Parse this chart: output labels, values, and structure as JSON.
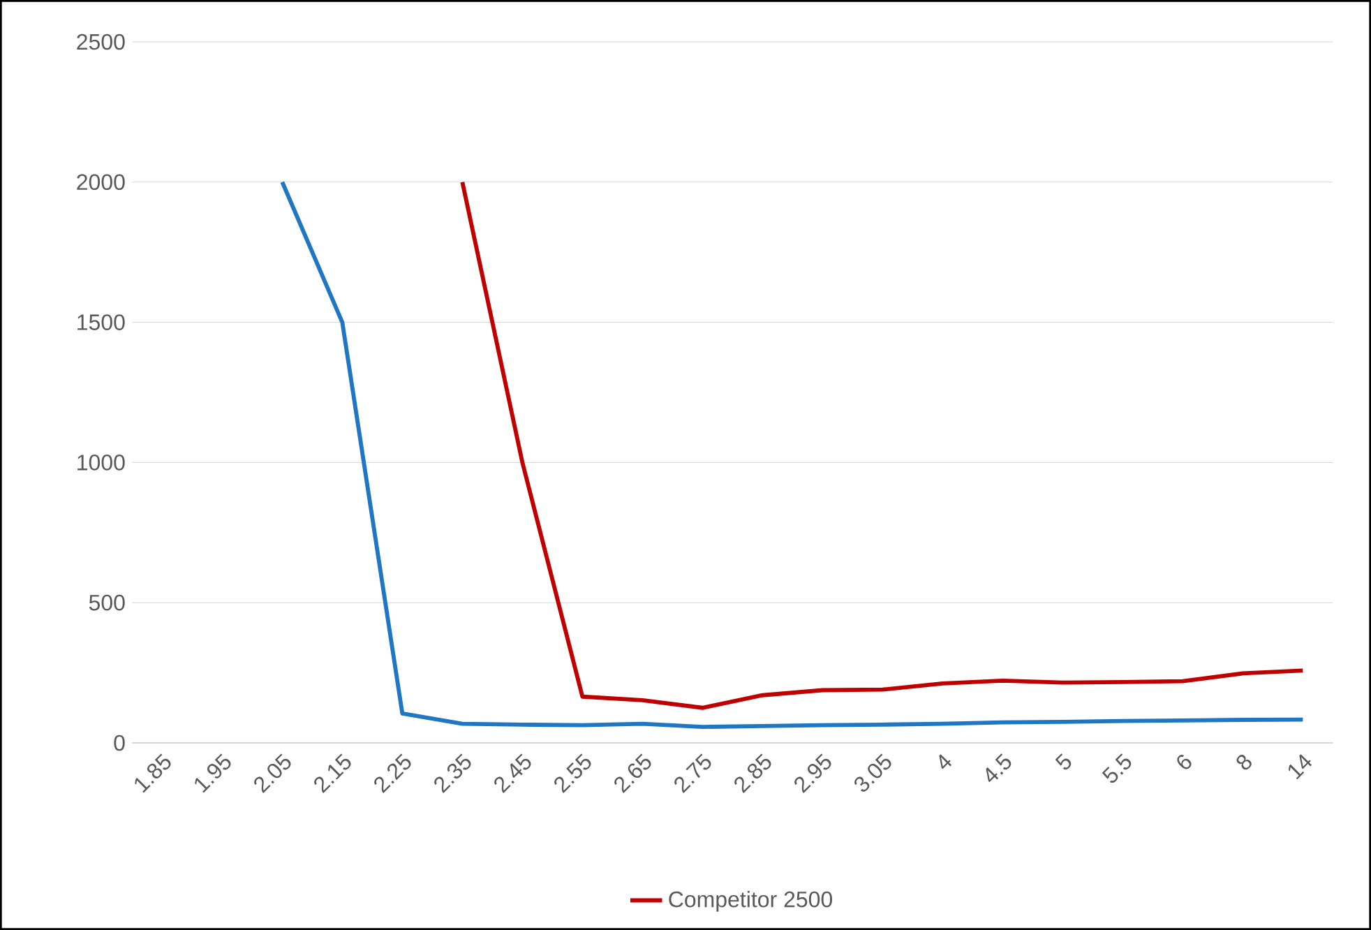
{
  "chart_data": {
    "type": "line",
    "categories": [
      "1.85",
      "1.95",
      "2.05",
      "2.15",
      "2.25",
      "2.35",
      "2.45",
      "2.55",
      "2.65",
      "2.75",
      "2.85",
      "2.95",
      "3.05",
      "4",
      "4.5",
      "5",
      "5.5",
      "6",
      "8",
      "14"
    ],
    "series": [
      {
        "color": "#1f77c4",
        "values": [
          null,
          null,
          2000,
          1500,
          105,
          68,
          65,
          63,
          68,
          57,
          60,
          63,
          65,
          68,
          73,
          75,
          78,
          80,
          82,
          83
        ]
      },
      {
        "name": "Competitor 2500",
        "color": "#c00000",
        "values": [
          null,
          null,
          null,
          null,
          null,
          2000,
          1000,
          165,
          152,
          125,
          170,
          188,
          190,
          212,
          222,
          215,
          217,
          220,
          248,
          258
        ]
      }
    ],
    "ylim": [
      0,
      2500
    ],
    "yticks": [
      0,
      500,
      1000,
      1500,
      2000,
      2500
    ],
    "grid": "y",
    "legend": "bottom",
    "line_style": "solid"
  }
}
